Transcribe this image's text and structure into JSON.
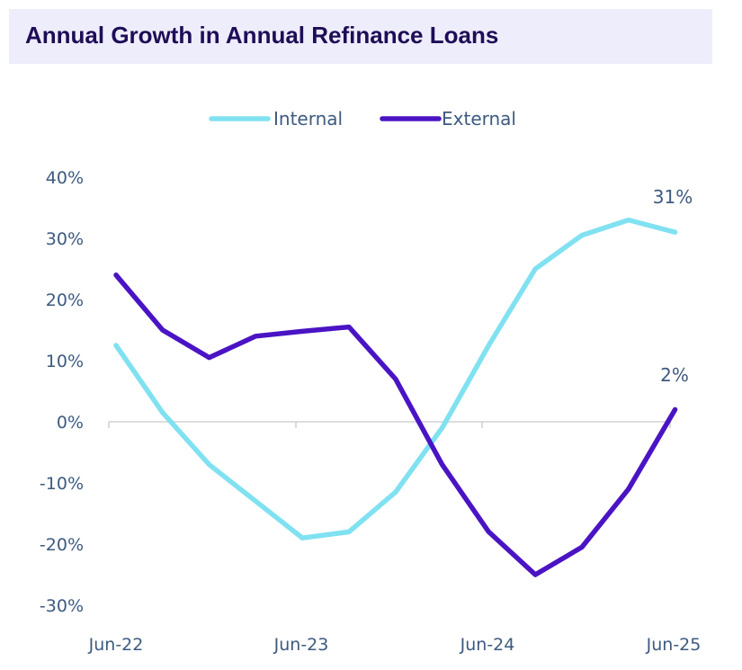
{
  "title": "Annual Growth in Annual Refinance Loans",
  "colors": {
    "internal": "#80e1f1",
    "external": "#4a14c4",
    "axis_text": "#3d5a80",
    "zero_line": "#d2d2d2",
    "title_bg": "#eeedfb",
    "title_text": "#1f0d57"
  },
  "chart_data": {
    "type": "line",
    "title": "",
    "xlabel": "",
    "ylabel": "",
    "ylim": [
      -30,
      40
    ],
    "y_ticks": [
      "40%",
      "30%",
      "20%",
      "10%",
      "0%",
      "-10%",
      "-20%",
      "-30%"
    ],
    "y_tick_values": [
      40,
      30,
      20,
      10,
      0,
      -10,
      -20,
      -30
    ],
    "x_tick_labels": [
      "Jun-22",
      "Jun-23",
      "Jun-24",
      "Jun-25"
    ],
    "x": [
      "Jun-22",
      "Sep-22",
      "Dec-22",
      "Mar-23",
      "Jun-23",
      "Sep-23",
      "Dec-23",
      "Mar-24",
      "Jun-24",
      "Sep-24",
      "Dec-24",
      "Mar-25",
      "Jun-25"
    ],
    "legend_position": "top",
    "grid": false,
    "series": [
      {
        "name": "Internal",
        "values": [
          12.5,
          1.5,
          -7,
          -13,
          -19,
          -18,
          -11.5,
          -1,
          12.5,
          25,
          30.5,
          33,
          31
        ],
        "end_label": "31%"
      },
      {
        "name": "External",
        "values": [
          24,
          15,
          10.5,
          14,
          14.8,
          15.5,
          7,
          -7,
          -18,
          -25,
          -20.5,
          -11,
          2
        ],
        "end_label": "2%"
      }
    ]
  }
}
